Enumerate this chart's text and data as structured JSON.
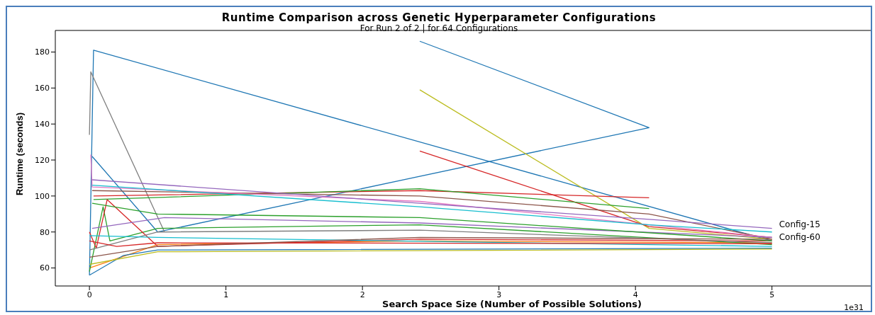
{
  "chart_data": {
    "type": "line",
    "title": "Runtime Comparison across Genetic Hyperparameter Configurations",
    "subtitle": "For Run 2 of 2 | for 64 Configurations",
    "xlabel": "Search Space Size (Number of Possible Solutions)",
    "ylabel": "Runtime (seconds)",
    "annotations": [
      "1e31"
    ],
    "xlim": [
      -0.25,
      5.76
    ],
    "xticks": [
      0,
      1,
      2,
      3,
      4,
      5
    ],
    "ylim": [
      50,
      192
    ],
    "yticks": [
      60,
      80,
      100,
      120,
      140,
      160,
      180
    ],
    "marker": "none",
    "line_style": "solid",
    "series": [
      {
        "color": "#1f77b4",
        "x": [
          0,
          0.03,
          5
        ],
        "values": [
          56,
          181,
          75
        ]
      },
      {
        "color": "#1f77b4",
        "x": [
          0.02,
          0.5,
          4.1,
          2.42
        ],
        "values": [
          122,
          80,
          138,
          186
        ]
      },
      {
        "color": "#7f7f7f",
        "x": [
          0,
          0.01,
          0.55
        ],
        "values": [
          134,
          169,
          80
        ]
      },
      {
        "color": "#bcbd22",
        "x": [
          2.42,
          4.1,
          5
        ],
        "values": [
          159,
          82,
          76
        ]
      },
      {
        "color": "#d62728",
        "x": [
          2.42,
          4.1,
          5
        ],
        "values": [
          125,
          83,
          77
        ]
      },
      {
        "name": "Config-15",
        "color": "#9467bd",
        "x": [
          0.02,
          2.42,
          4.1,
          5
        ],
        "values": [
          109,
          96,
          87,
          82
        ]
      },
      {
        "name": "Config-60",
        "color": "#17becf",
        "x": [
          0.02,
          2.42,
          4.1,
          5
        ],
        "values": [
          106,
          94,
          84,
          80
        ]
      },
      {
        "color": "#d62728",
        "x": [
          0.03,
          2.42,
          4.1
        ],
        "values": [
          100,
          103,
          99
        ]
      },
      {
        "color": "#2ca02c",
        "x": [
          0.03,
          2.42,
          4.1
        ],
        "values": [
          98,
          104,
          93
        ]
      },
      {
        "color": "#8c564b",
        "x": [
          0.02,
          2.42,
          4.1,
          5
        ],
        "values": [
          103,
          100,
          90,
          76
        ]
      },
      {
        "color": "#e377c2",
        "x": [
          0.01,
          0.02,
          2.42,
          5
        ],
        "values": [
          123,
          105,
          97,
          77
        ]
      },
      {
        "color": "#ff7f0e",
        "x": [
          0,
          0.5,
          2.42,
          5
        ],
        "values": [
          60,
          73,
          75,
          74
        ]
      },
      {
        "color": "#2ca02c",
        "x": [
          0,
          0.1,
          0.15,
          0.5,
          2.42,
          5
        ],
        "values": [
          58,
          94,
          75,
          82,
          84,
          73
        ]
      },
      {
        "color": "#d62728",
        "x": [
          0,
          0.05,
          0.13,
          0.5,
          2.42,
          5
        ],
        "values": [
          80,
          71,
          98,
          72,
          76,
          75
        ]
      },
      {
        "color": "#1f77b4",
        "x": [
          0,
          0.25,
          0.5,
          5
        ],
        "values": [
          56,
          67,
          70,
          71
        ]
      },
      {
        "color": "#bcbd22",
        "x": [
          0,
          0.5,
          5
        ],
        "values": [
          62,
          69,
          70.5
        ]
      },
      {
        "color": "#7f7f7f",
        "x": [
          0,
          0.5,
          2.42,
          5
        ],
        "values": [
          70,
          80,
          81,
          74
        ]
      },
      {
        "color": "#9467bd",
        "x": [
          0.02,
          0.55,
          2.42,
          5
        ],
        "values": [
          82,
          88,
          85,
          77
        ]
      },
      {
        "color": "#17becf",
        "x": [
          0,
          0.5,
          5
        ],
        "values": [
          78,
          77,
          72
        ]
      },
      {
        "color": "#d62728",
        "x": [
          0,
          0.2,
          0.5,
          5
        ],
        "values": [
          75,
          72,
          74,
          73.5
        ]
      },
      {
        "color": "#2ca02c",
        "x": [
          0.02,
          0.5,
          2.42,
          5
        ],
        "values": [
          96,
          90,
          88,
          75
        ]
      },
      {
        "color": "#8c564b",
        "x": [
          0,
          0.5,
          2.42,
          5
        ],
        "values": [
          66,
          72,
          77,
          76
        ]
      }
    ]
  }
}
